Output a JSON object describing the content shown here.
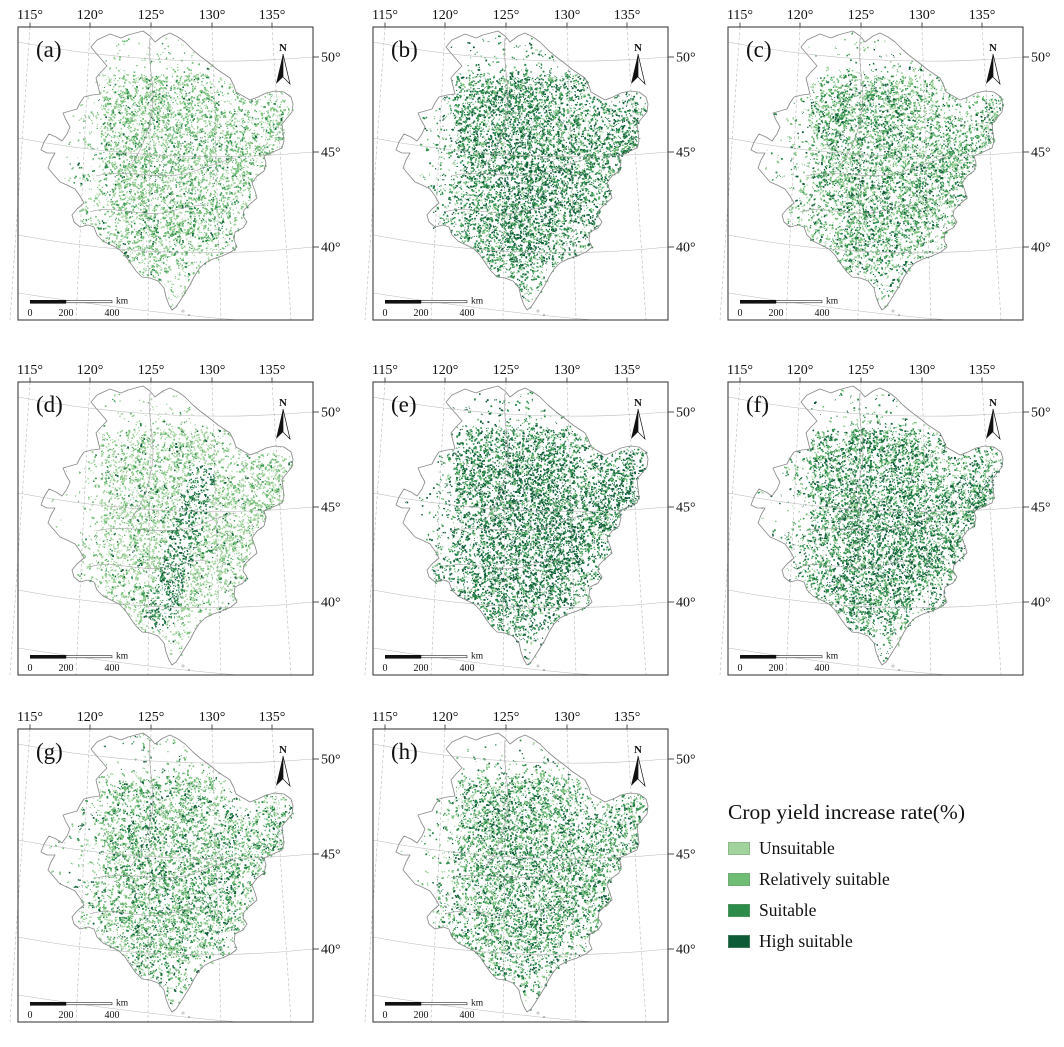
{
  "figure": {
    "axes": {
      "lon_labels": [
        "115°",
        "120°",
        "125°",
        "130°",
        "135°"
      ],
      "lat_labels": [
        "50°",
        "45°",
        "40°"
      ]
    },
    "north_label": "N",
    "scalebar": {
      "labels": [
        "0",
        "200",
        "400"
      ],
      "unit": "km"
    },
    "panels": [
      {
        "label": "(a)",
        "dominant": "Relatively suitable",
        "mix": [
          0.3,
          0.54,
          0.13,
          0.03
        ],
        "density": 0.62,
        "dark_bias": 0.12,
        "dark_band": false,
        "seed": 101
      },
      {
        "label": "(b)",
        "dominant": "Suitable",
        "mix": [
          0.06,
          0.2,
          0.55,
          0.19
        ],
        "density": 0.85,
        "dark_bias": 0.5,
        "dark_band": false,
        "seed": 202
      },
      {
        "label": "(c)",
        "dominant": "Relatively suitable",
        "mix": [
          0.18,
          0.44,
          0.27,
          0.11
        ],
        "density": 0.74,
        "dark_bias": 0.35,
        "dark_band": false,
        "seed": 303
      },
      {
        "label": "(d)",
        "dominant": "Unsuitable",
        "mix": [
          0.58,
          0.29,
          0.09,
          0.04
        ],
        "density": 0.64,
        "dark_bias": 0.05,
        "dark_band": true,
        "seed": 404
      },
      {
        "label": "(e)",
        "dominant": "Suitable",
        "mix": [
          0.06,
          0.16,
          0.5,
          0.28
        ],
        "density": 0.85,
        "dark_bias": 0.58,
        "dark_band": false,
        "seed": 505
      },
      {
        "label": "(f)",
        "dominant": "Suitable",
        "mix": [
          0.08,
          0.27,
          0.47,
          0.18
        ],
        "density": 0.84,
        "dark_bias": 0.48,
        "dark_band": false,
        "seed": 606
      },
      {
        "label": "(g)",
        "dominant": "Relatively suitable",
        "mix": [
          0.22,
          0.48,
          0.2,
          0.1
        ],
        "density": 0.7,
        "dark_bias": 0.3,
        "dark_band": false,
        "seed": 707
      },
      {
        "label": "(h)",
        "dominant": "Relatively suitable",
        "mix": [
          0.13,
          0.38,
          0.37,
          0.12
        ],
        "density": 0.77,
        "dark_bias": 0.42,
        "dark_band": false,
        "seed": 808
      }
    ],
    "legend": {
      "title": "Crop yield increase rate(%)",
      "items": [
        {
          "label": "Unsuitable",
          "color": "#a3d39c"
        },
        {
          "label": "Relatively suitable",
          "color": "#6fbc74"
        },
        {
          "label": "Suitable",
          "color": "#2b8c4a"
        },
        {
          "label": "High suitable",
          "color": "#0e5b38"
        }
      ]
    }
  }
}
